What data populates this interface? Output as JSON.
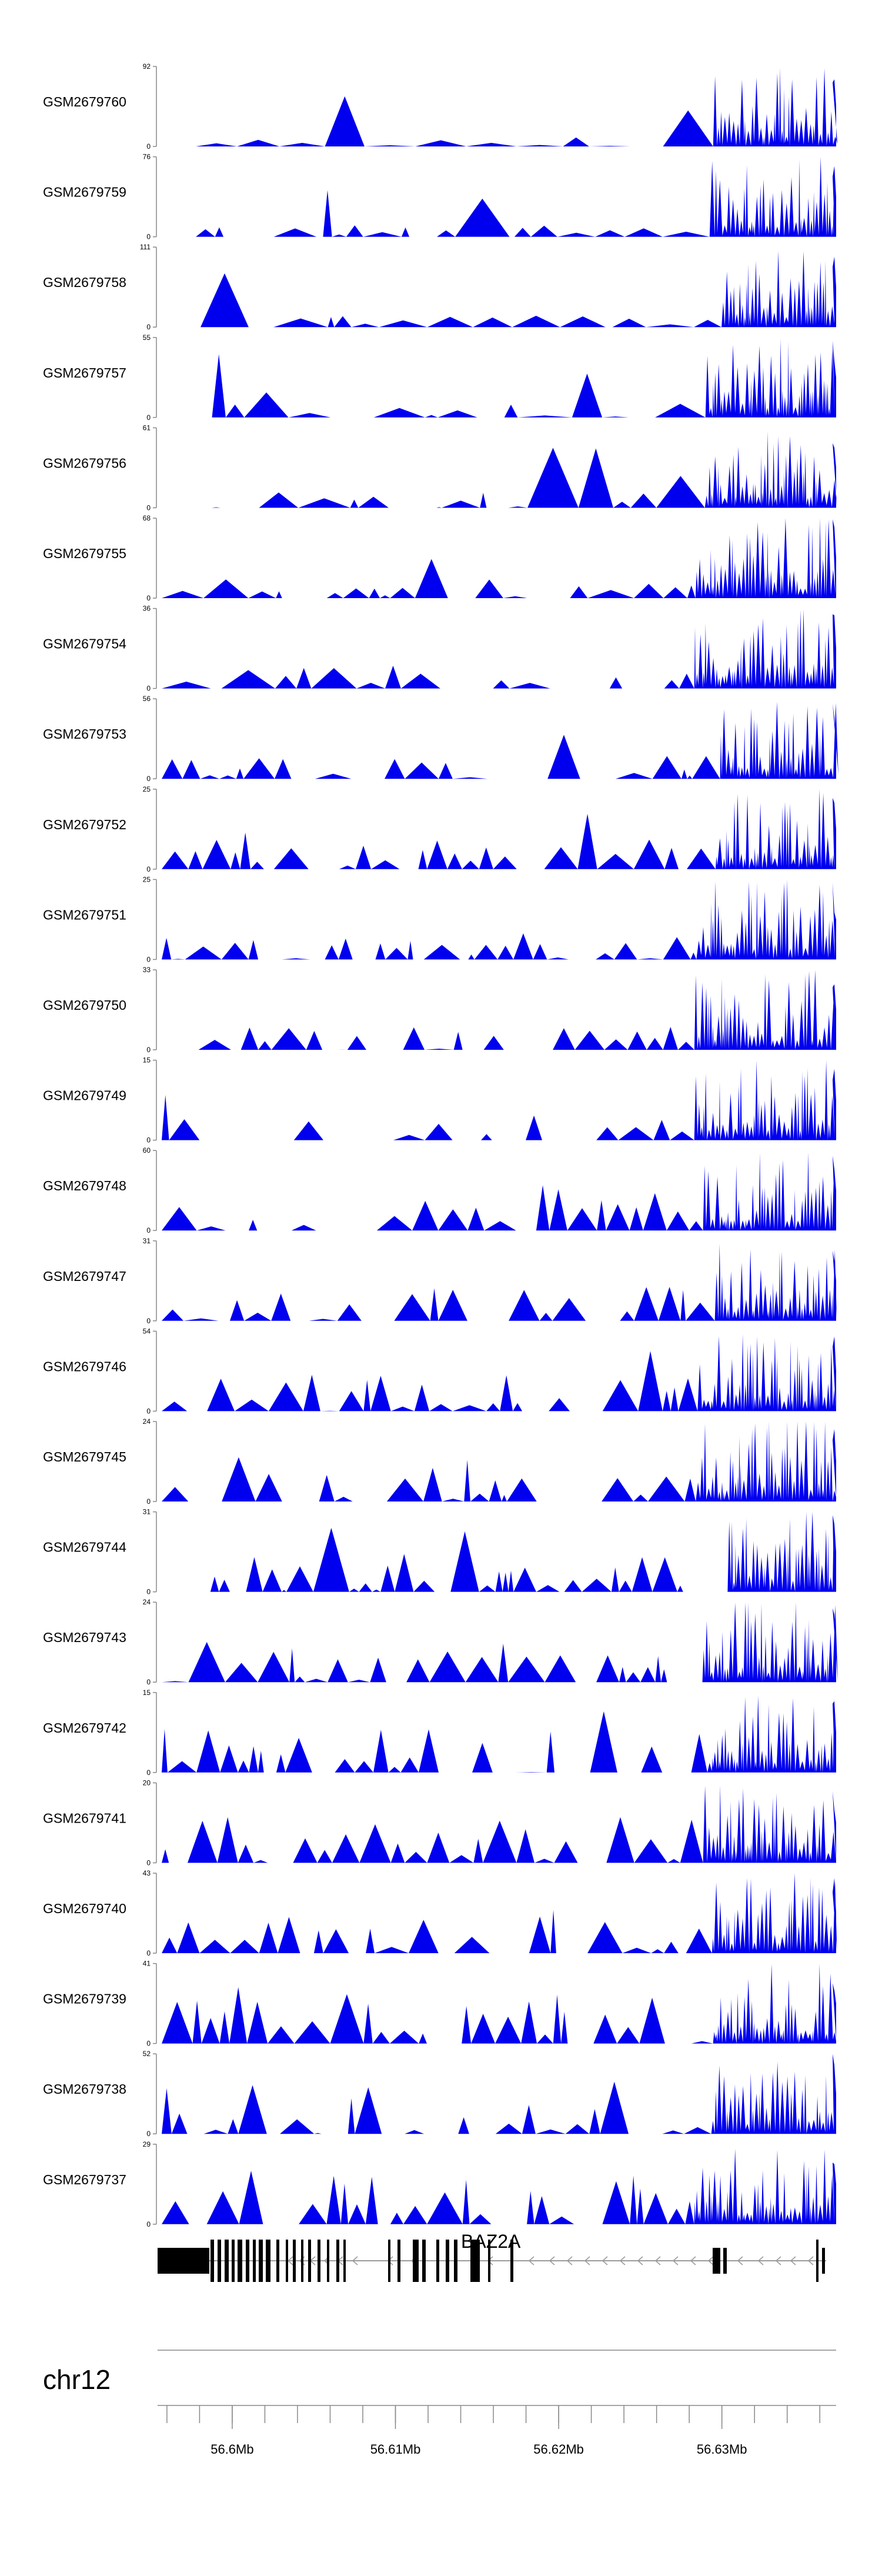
{
  "chart_data": {
    "type": "area",
    "title": "",
    "chromosome": "chr12",
    "gene": {
      "name": "BAZ2A",
      "strand": "-"
    },
    "xlabel": "",
    "ylabel": "",
    "xlim_mb": [
      56.5955,
      56.637
    ],
    "x_ticks": [
      {
        "value": 56.6,
        "label": "56.6Mb"
      },
      {
        "value": 56.61,
        "label": "56.61Mb"
      },
      {
        "value": 56.62,
        "label": "56.62Mb"
      },
      {
        "value": 56.63,
        "label": "56.63Mb"
      }
    ],
    "tracks": [
      {
        "name": "GSM2679760",
        "ymax": 92,
        "ymin": 0
      },
      {
        "name": "GSM2679759",
        "ymax": 76,
        "ymin": 0
      },
      {
        "name": "GSM2679758",
        "ymax": 111,
        "ymin": 0
      },
      {
        "name": "GSM2679757",
        "ymax": 55,
        "ymin": 0
      },
      {
        "name": "GSM2679756",
        "ymax": 61,
        "ymin": 0
      },
      {
        "name": "GSM2679755",
        "ymax": 68,
        "ymin": 0
      },
      {
        "name": "GSM2679754",
        "ymax": 36,
        "ymin": 0
      },
      {
        "name": "GSM2679753",
        "ymax": 56,
        "ymin": 0
      },
      {
        "name": "GSM2679752",
        "ymax": 25,
        "ymin": 0
      },
      {
        "name": "GSM2679751",
        "ymax": 25,
        "ymin": 0
      },
      {
        "name": "GSM2679750",
        "ymax": 33,
        "ymin": 0
      },
      {
        "name": "GSM2679749",
        "ymax": 15,
        "ymin": 0
      },
      {
        "name": "GSM2679748",
        "ymax": 60,
        "ymin": 0
      },
      {
        "name": "GSM2679747",
        "ymax": 31,
        "ymin": 0
      },
      {
        "name": "GSM2679746",
        "ymax": 54,
        "ymin": 0
      },
      {
        "name": "GSM2679745",
        "ymax": 24,
        "ymin": 0
      },
      {
        "name": "GSM2679744",
        "ymax": 31,
        "ymin": 0
      },
      {
        "name": "GSM2679743",
        "ymax": 24,
        "ymin": 0
      },
      {
        "name": "GSM2679742",
        "ymax": 15,
        "ymin": 0
      },
      {
        "name": "GSM2679741",
        "ymax": 20,
        "ymin": 0
      },
      {
        "name": "GSM2679740",
        "ymax": 43,
        "ymin": 0
      },
      {
        "name": "GSM2679739",
        "ymax": 41,
        "ymin": 0
      },
      {
        "name": "GSM2679738",
        "ymax": 52,
        "ymin": 0
      },
      {
        "name": "GSM2679737",
        "ymax": 29,
        "ymin": 0
      }
    ],
    "colors": {
      "signal": "#0000ee",
      "axis": "#888888",
      "gene": "#000000",
      "intron": "#9a9a9a"
    }
  }
}
